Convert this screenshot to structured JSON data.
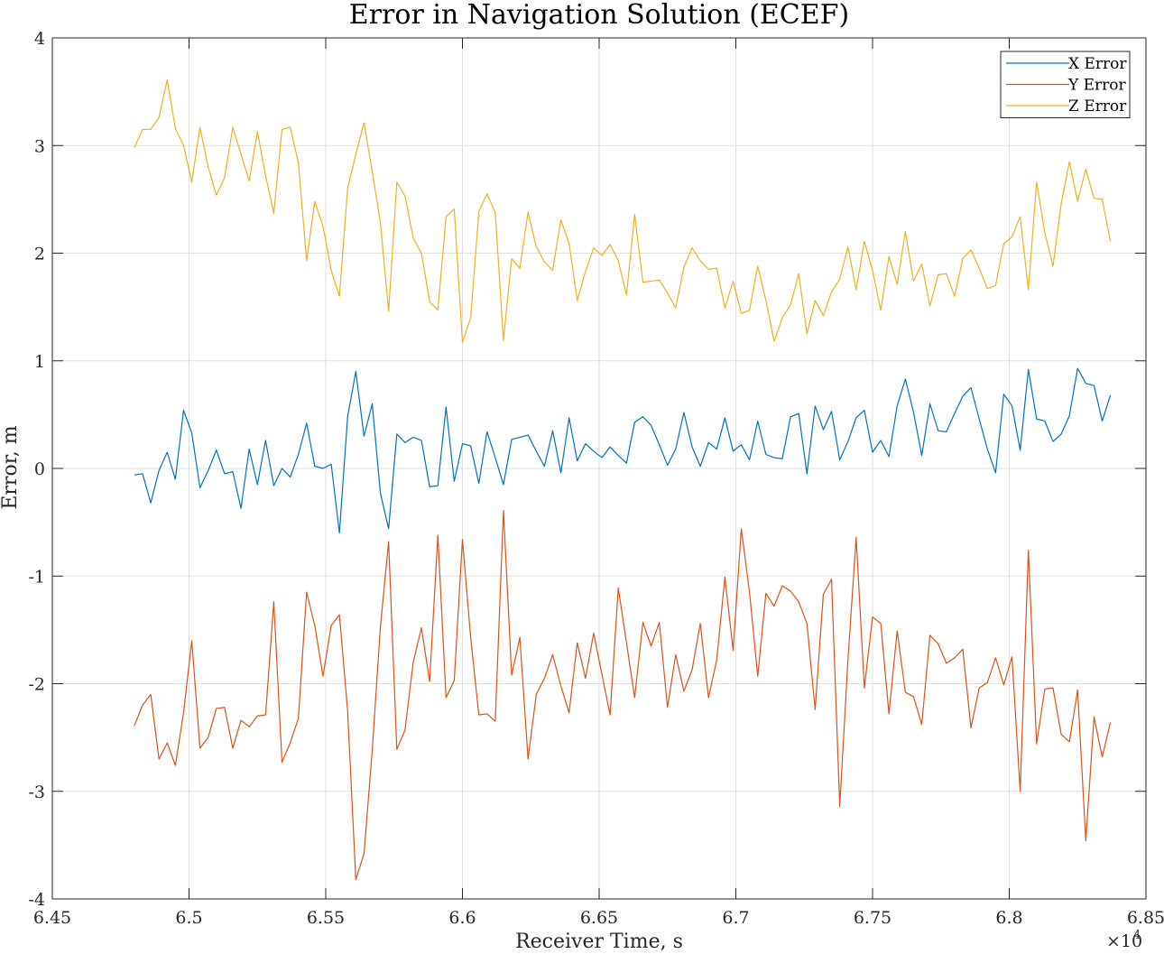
{
  "chart_data": {
    "type": "line",
    "title": "Error in Navigation Solution (ECEF)",
    "xlabel": "Receiver Time, s",
    "ylabel": "Error, m",
    "x_exponent_label": "×10",
    "x_exponent_power": "4",
    "xlim": [
      6.45,
      6.85
    ],
    "ylim": [
      -4,
      4
    ],
    "x_ticks": [
      6.45,
      6.5,
      6.55,
      6.6,
      6.65,
      6.7,
      6.75,
      6.8,
      6.85
    ],
    "x_tick_labels": [
      "6.45",
      "6.5",
      "6.55",
      "6.6",
      "6.65",
      "6.7",
      "6.75",
      "6.8",
      "6.85"
    ],
    "y_ticks": [
      -4,
      -3,
      -2,
      -1,
      0,
      1,
      2,
      3,
      4
    ],
    "y_tick_labels": [
      "-4",
      "-3",
      "-2",
      "-1",
      "0",
      "1",
      "2",
      "3",
      "4"
    ],
    "grid": true,
    "legend_position": "top-right",
    "x_start": 6.48,
    "x_step": 0.003,
    "series": [
      {
        "name": "X Error",
        "color": "#0072BD",
        "values": [
          -0.06,
          -0.05,
          -0.32,
          -0.02,
          0.15,
          -0.1,
          0.54,
          0.33,
          -0.18,
          -0.02,
          0.17,
          -0.05,
          -0.03,
          -0.37,
          0.18,
          -0.15,
          0.26,
          -0.16,
          0.0,
          -0.08,
          0.13,
          0.42,
          0.02,
          0.0,
          0.04,
          -0.6,
          0.48,
          0.9,
          0.3,
          0.6,
          -0.23,
          -0.56,
          0.32,
          0.24,
          0.29,
          0.26,
          -0.17,
          -0.16,
          0.57,
          -0.12,
          0.23,
          0.21,
          -0.14,
          0.34,
          0.1,
          -0.15,
          0.27,
          0.29,
          0.31,
          0.16,
          0.02,
          0.35,
          -0.04,
          0.47,
          0.07,
          0.23,
          0.16,
          0.1,
          0.2,
          0.12,
          0.05,
          0.43,
          0.48,
          0.4,
          0.22,
          0.03,
          0.18,
          0.52,
          0.2,
          0.02,
          0.24,
          0.18,
          0.47,
          0.16,
          0.22,
          0.08,
          0.44,
          0.13,
          0.1,
          0.09,
          0.48,
          0.51,
          -0.05,
          0.58,
          0.36,
          0.53,
          0.08,
          0.25,
          0.47,
          0.54,
          0.15,
          0.26,
          0.11,
          0.58,
          0.83,
          0.52,
          0.12,
          0.6,
          0.35,
          0.34,
          0.51,
          0.67,
          0.75,
          0.46,
          0.18,
          -0.04,
          0.69,
          0.58,
          0.17,
          0.92,
          0.46,
          0.44,
          0.25,
          0.32,
          0.49,
          0.93,
          0.79,
          0.77,
          0.44,
          0.68
        ]
      },
      {
        "name": "Y Error",
        "color": "#D95319",
        "values": [
          -2.39,
          -2.2,
          -2.1,
          -2.7,
          -2.55,
          -2.76,
          -2.27,
          -1.6,
          -2.6,
          -2.5,
          -2.23,
          -2.22,
          -2.6,
          -2.34,
          -2.4,
          -2.3,
          -2.29,
          -1.24,
          -2.73,
          -2.55,
          -2.32,
          -1.15,
          -1.46,
          -1.93,
          -1.46,
          -1.36,
          -2.25,
          -3.82,
          -3.58,
          -2.62,
          -1.47,
          -0.68,
          -2.61,
          -2.43,
          -1.8,
          -1.48,
          -1.98,
          -0.62,
          -2.13,
          -1.97,
          -0.66,
          -1.57,
          -2.29,
          -2.28,
          -2.35,
          -0.39,
          -1.92,
          -1.57,
          -2.7,
          -2.1,
          -1.95,
          -1.73,
          -2.02,
          -2.27,
          -1.62,
          -1.95,
          -1.53,
          -1.91,
          -2.29,
          -1.11,
          -1.62,
          -2.13,
          -1.43,
          -1.65,
          -1.43,
          -2.22,
          -1.73,
          -2.07,
          -1.87,
          -1.44,
          -2.13,
          -1.78,
          -1.01,
          -1.69,
          -0.56,
          -1.15,
          -1.93,
          -1.16,
          -1.28,
          -1.09,
          -1.14,
          -1.24,
          -1.44,
          -2.24,
          -1.17,
          -1.03,
          -3.14,
          -1.78,
          -0.64,
          -2.04,
          -1.38,
          -1.44,
          -2.28,
          -1.51,
          -2.08,
          -2.12,
          -2.38,
          -1.55,
          -1.63,
          -1.81,
          -1.76,
          -1.68,
          -2.41,
          -2.04,
          -1.99,
          -1.76,
          -2.01,
          -1.75,
          -3.0,
          -0.76,
          -2.56,
          -2.05,
          -2.04,
          -2.47,
          -2.54,
          -2.06,
          -3.46,
          -2.31,
          -2.68,
          -2.36
        ]
      },
      {
        "name": "Z Error",
        "color": "#EDB120",
        "values": [
          2.98,
          3.15,
          3.15,
          3.26,
          3.61,
          3.16,
          3.0,
          2.66,
          3.17,
          2.8,
          2.54,
          2.7,
          3.17,
          2.92,
          2.67,
          3.13,
          2.72,
          2.37,
          3.15,
          3.17,
          2.84,
          1.93,
          2.48,
          2.25,
          1.84,
          1.6,
          2.6,
          2.92,
          3.21,
          2.76,
          2.28,
          1.46,
          2.66,
          2.53,
          2.14,
          2.0,
          1.55,
          1.47,
          2.34,
          2.41,
          1.17,
          1.4,
          2.39,
          2.55,
          2.38,
          1.19,
          1.95,
          1.86,
          2.38,
          2.06,
          1.92,
          1.84,
          2.31,
          2.09,
          1.56,
          1.83,
          2.05,
          1.98,
          2.08,
          1.93,
          1.61,
          2.36,
          1.73,
          1.74,
          1.75,
          1.63,
          1.49,
          1.87,
          2.05,
          1.93,
          1.85,
          1.86,
          1.49,
          1.74,
          1.44,
          1.47,
          1.88,
          1.56,
          1.18,
          1.4,
          1.52,
          1.81,
          1.25,
          1.56,
          1.42,
          1.64,
          1.76,
          2.06,
          1.66,
          2.11,
          1.84,
          1.47,
          1.97,
          1.71,
          2.2,
          1.74,
          1.9,
          1.51,
          1.8,
          1.81,
          1.6,
          1.95,
          2.03,
          1.86,
          1.67,
          1.7,
          2.09,
          2.15,
          2.34,
          1.66,
          2.66,
          2.19,
          1.88,
          2.46,
          2.85,
          2.48,
          2.78,
          2.51,
          2.5,
          2.11
        ]
      }
    ]
  }
}
